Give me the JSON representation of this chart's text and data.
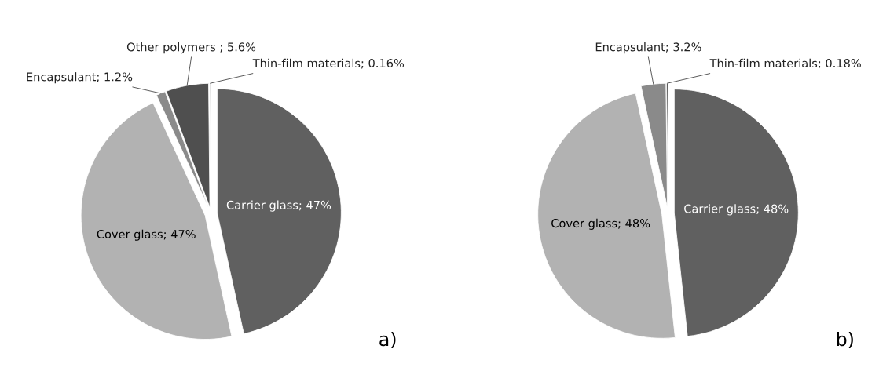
{
  "chart_data": [
    {
      "type": "pie",
      "categories": [
        "Carrier glass",
        "Cover glass",
        "Encapsulant",
        "Other polymers ",
        "Thin-film materials"
      ],
      "values": [
        47,
        47,
        1.2,
        5.6,
        0.16
      ],
      "value_labels": [
        "47%",
        "47%",
        "1.2%",
        "5.6%",
        "0.16%"
      ],
      "colors": [
        "#606060",
        "#b2b2b2",
        "#8a8a8a",
        "#4f4f4f",
        "#d0d0d0"
      ],
      "annotations": [
        "a)"
      ]
    },
    {
      "type": "pie",
      "categories": [
        "Carrier glass",
        "Cover glass",
        "Encapsulant",
        "Thin-film materials"
      ],
      "values": [
        48,
        48,
        3.2,
        0.18
      ],
      "value_labels": [
        "48%",
        "48%",
        "3.2%",
        "0.18%"
      ],
      "colors": [
        "#606060",
        "#b2b2b2",
        "#8a8a8a",
        "#3a3a3a"
      ],
      "annotations": [
        "b)"
      ]
    }
  ]
}
